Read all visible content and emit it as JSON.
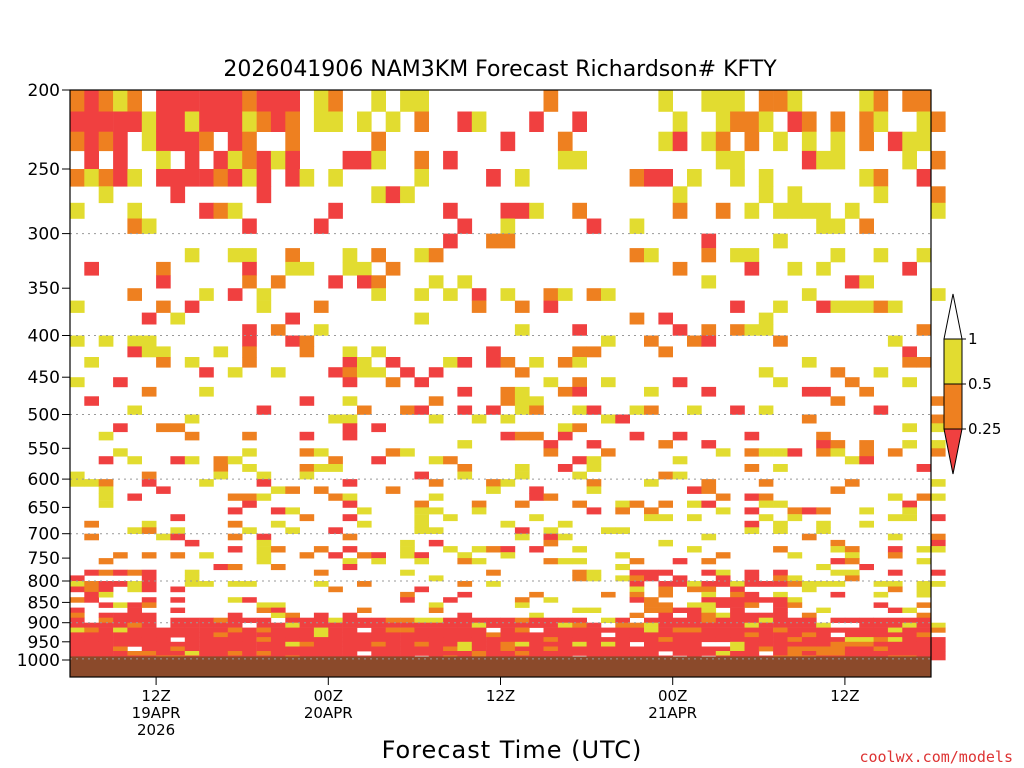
{
  "chart_data": {
    "type": "heatmap",
    "title": "2026041906 NAM3KM Forecast Richardson# KFTY",
    "xlabel": "Forecast Time (UTC)",
    "ylabel": "",
    "y_scale": "log",
    "y_inverted": true,
    "ylim": [
      1000,
      200
    ],
    "y_ticks": [
      200,
      250,
      300,
      350,
      400,
      450,
      500,
      550,
      600,
      650,
      700,
      750,
      800,
      850,
      900,
      950,
      1000
    ],
    "y_gridlines": [
      300,
      400,
      500,
      600,
      700,
      800,
      900,
      1000
    ],
    "x_range_hours": [
      0,
      60
    ],
    "x_ticks": [
      {
        "hour": 6,
        "lines": [
          "12Z",
          "19APR",
          "2026"
        ]
      },
      {
        "hour": 18,
        "lines": [
          "00Z",
          "20APR"
        ]
      },
      {
        "hour": 30,
        "lines": [
          "12Z"
        ]
      },
      {
        "hour": 42,
        "lines": [
          "00Z",
          "21APR"
        ]
      },
      {
        "hour": 54,
        "lines": [
          "12Z"
        ]
      }
    ],
    "legend": {
      "placement": "right",
      "bins": [
        {
          "range": "< 0.25",
          "color": "#f04040"
        },
        {
          "range": "0.25 - 0.5",
          "color": "#ee8020"
        },
        {
          "range": "0.5 - 1",
          "color": "#e2dc30"
        },
        {
          "range": "> 1",
          "color": "#ffffff"
        }
      ],
      "labels": [
        "1",
        "0.5",
        "0.25"
      ]
    },
    "ground_color": "#8b4a2b",
    "surface_pressure": 990
  },
  "credit": "coolwx.com/models"
}
